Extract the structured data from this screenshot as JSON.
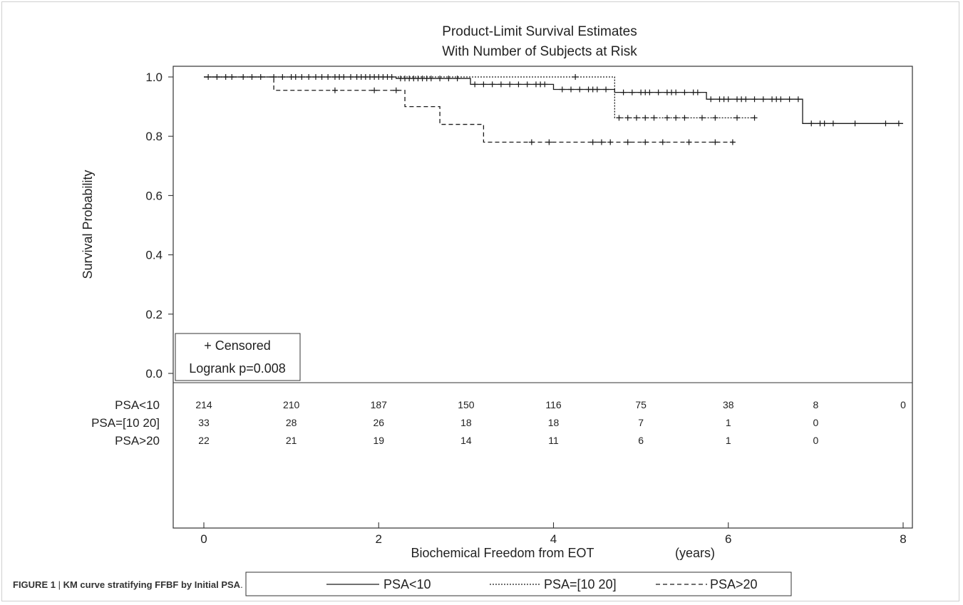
{
  "chart_data": {
    "type": "line",
    "title": "Product-Limit Survival Estimates",
    "subtitle": "With Number of Subjects at Risk",
    "xlabel": "Biochemical Freedom from EOT",
    "xlabel_unit": "(years)",
    "ylabel": "Survival Probability",
    "xlim": [
      0,
      8
    ],
    "ylim": [
      0,
      1
    ],
    "x_ticks": [
      "0",
      "2",
      "4",
      "6",
      "8"
    ],
    "y_ticks": [
      "0.0",
      "0.2",
      "0.4",
      "0.6",
      "0.8",
      "1.0"
    ],
    "legend_position": "bottom",
    "inset_box": {
      "censored_label": "+ Censored",
      "logrank_label": "Logrank p=0.008"
    },
    "series": [
      {
        "name": "PSA<10",
        "line_style": "solid",
        "steps": [
          [
            0,
            1.0
          ],
          [
            2.2,
            0.995
          ],
          [
            3.05,
            0.975
          ],
          [
            4.0,
            0.958
          ],
          [
            4.7,
            0.948
          ],
          [
            5.75,
            0.925
          ],
          [
            6.85,
            0.843
          ],
          [
            8.0,
            0.843
          ]
        ],
        "censored": [
          0.05,
          0.15,
          0.25,
          0.32,
          0.45,
          0.55,
          0.65,
          0.8,
          0.9,
          1.0,
          1.05,
          1.12,
          1.2,
          1.28,
          1.35,
          1.42,
          1.5,
          1.55,
          1.6,
          1.68,
          1.75,
          1.8,
          1.85,
          1.9,
          1.95,
          2.0,
          2.05,
          2.1,
          2.15,
          2.25,
          2.3,
          2.35,
          2.4,
          2.45,
          2.5,
          2.55,
          2.6,
          2.7,
          2.8,
          2.9,
          3.1,
          3.2,
          3.3,
          3.4,
          3.5,
          3.6,
          3.7,
          3.8,
          3.85,
          3.9,
          4.1,
          4.2,
          4.3,
          4.4,
          4.45,
          4.5,
          4.6,
          4.8,
          4.9,
          5.0,
          5.05,
          5.1,
          5.2,
          5.3,
          5.35,
          5.4,
          5.5,
          5.6,
          5.65,
          5.8,
          5.9,
          5.95,
          6.0,
          6.1,
          6.15,
          6.2,
          6.3,
          6.4,
          6.5,
          6.55,
          6.6,
          6.7,
          6.8,
          6.95,
          7.05,
          7.1,
          7.2,
          7.45,
          7.8,
          7.95
        ]
      },
      {
        "name": "PSA=[10 20]",
        "line_style": "dotted",
        "steps": [
          [
            0,
            1.0
          ],
          [
            4.7,
            0.862
          ],
          [
            6.3,
            0.862
          ]
        ],
        "censored": [
          4.25,
          4.75,
          4.85,
          4.95,
          5.05,
          5.15,
          5.3,
          5.4,
          5.5,
          5.7,
          5.85,
          6.1,
          6.3
        ]
      },
      {
        "name": "PSA>20",
        "line_style": "dashed",
        "steps": [
          [
            0,
            1.0
          ],
          [
            0.8,
            0.955
          ],
          [
            2.3,
            0.9
          ],
          [
            2.7,
            0.84
          ],
          [
            3.2,
            0.78
          ],
          [
            6.1,
            0.78
          ]
        ],
        "censored": [
          1.5,
          1.95,
          2.2,
          3.75,
          3.95,
          4.45,
          4.55,
          4.65,
          4.85,
          5.05,
          5.25,
          5.55,
          5.85,
          6.05
        ]
      }
    ],
    "at_risk": {
      "times": [
        0,
        1,
        2,
        3,
        4,
        5,
        6,
        7,
        8
      ],
      "rows": [
        {
          "label": "PSA<10",
          "counts": [
            "214",
            "210",
            "187",
            "150",
            "116",
            "75",
            "38",
            "8",
            "0"
          ]
        },
        {
          "label": "PSA=[10 20]",
          "counts": [
            "33",
            "28",
            "26",
            "18",
            "18",
            "7",
            "1",
            "0",
            ""
          ]
        },
        {
          "label": "PSA>20",
          "counts": [
            "22",
            "21",
            "19",
            "14",
            "11",
            "6",
            "1",
            "0",
            ""
          ]
        }
      ]
    }
  },
  "caption": {
    "figure_label": "FIGURE 1",
    "separator": " | ",
    "text": "KM curve stratifying FFBF by Initial PSA",
    "suffix": "."
  }
}
